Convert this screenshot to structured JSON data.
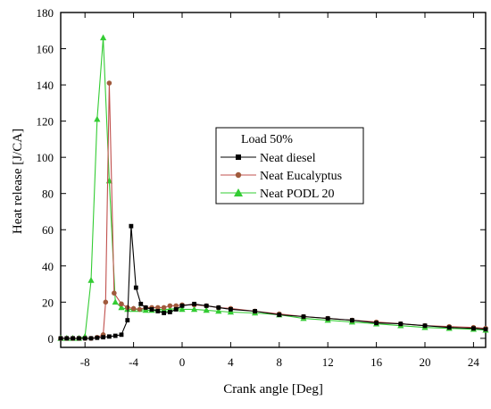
{
  "chart_data": {
    "type": "line",
    "title": "",
    "xlabel": "Crank angle [Deg]",
    "ylabel": "Heat release [J/CA]",
    "xlim": [
      -10,
      25
    ],
    "ylim": [
      -5,
      180
    ],
    "xticks": [
      -8,
      -4,
      0,
      4,
      8,
      12,
      16,
      20,
      24
    ],
    "yticks": [
      0,
      20,
      40,
      60,
      80,
      100,
      120,
      140,
      160,
      180
    ],
    "grid": false,
    "legend": {
      "title": "Load 50%",
      "placement": "center-right"
    },
    "colors": {
      "diesel": "#000000",
      "eucalyptus": "#c0504d",
      "podl": "#33cc33",
      "eucalyptus_marker": "#a05a3c"
    },
    "series": [
      {
        "name": "Neat diesel",
        "marker": "square",
        "x": [
          -10,
          -9.5,
          -9,
          -8.5,
          -8,
          -7.5,
          -7,
          -6.5,
          -6,
          -5.5,
          -5,
          -4.5,
          -4.2,
          -3.8,
          -3.4,
          -3,
          -2.5,
          -2,
          -1.5,
          -1,
          -0.5,
          0,
          1,
          2,
          3,
          4,
          6,
          8,
          10,
          12,
          14,
          16,
          18,
          20,
          22,
          24,
          25
        ],
        "y": [
          0,
          0,
          0,
          0,
          0,
          0,
          0.3,
          0.6,
          1,
          1.4,
          2,
          10,
          62,
          28,
          19,
          17,
          16,
          15,
          14,
          14.5,
          16,
          18,
          19,
          18,
          17,
          16,
          15,
          13,
          12,
          11,
          10,
          8.5,
          8,
          7,
          6,
          5.5,
          5
        ]
      },
      {
        "name": "Neat Eucalyptus",
        "marker": "circle",
        "x": [
          -10,
          -9.5,
          -9,
          -8.5,
          -8,
          -7.5,
          -7,
          -6.5,
          -6.3,
          -6,
          -5.6,
          -5,
          -4.5,
          -4,
          -3.5,
          -3,
          -2.5,
          -2,
          -1.5,
          -1,
          -0.5,
          0,
          1,
          2,
          3,
          4,
          6,
          8,
          10,
          12,
          14,
          16,
          18,
          20,
          22,
          24,
          25
        ],
        "y": [
          0,
          0,
          0,
          0,
          0,
          0,
          0.5,
          2,
          20,
          141,
          25,
          19,
          17,
          16.5,
          16,
          17,
          17,
          17,
          17,
          18,
          18,
          18.5,
          18.5,
          18,
          17,
          16.5,
          15,
          13.5,
          12,
          11,
          10,
          9,
          8,
          7,
          6.5,
          6,
          5.5
        ]
      },
      {
        "name": "Neat PODL 20",
        "marker": "triangle",
        "x": [
          -10,
          -9.5,
          -9,
          -8.5,
          -8,
          -7.5,
          -7,
          -6.5,
          -6,
          -5.5,
          -5,
          -4.5,
          -4,
          -3.5,
          -3,
          -2.5,
          -2,
          -1.5,
          -1,
          -0.5,
          0,
          1,
          2,
          3,
          4,
          6,
          8,
          10,
          12,
          14,
          16,
          18,
          20,
          22,
          24,
          25
        ],
        "y": [
          0,
          0,
          0,
          0,
          1,
          32,
          121,
          166,
          87,
          20,
          17,
          16,
          16,
          16,
          15.5,
          15.5,
          16,
          16,
          16,
          16.5,
          16,
          16,
          15.5,
          15,
          14.5,
          14,
          13,
          11,
          10,
          9,
          8,
          7,
          6,
          5.5,
          5,
          4.5
        ]
      }
    ]
  }
}
